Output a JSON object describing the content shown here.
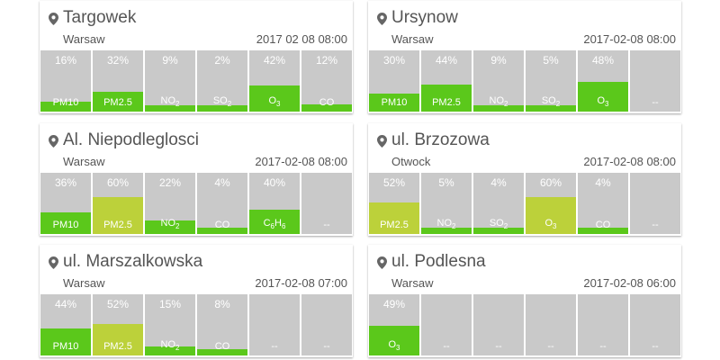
{
  "colors": {
    "good": "#5bc81b",
    "moderate": "#bcd13a",
    "empty": "#c9c9c9"
  },
  "icon": "location-pin-icon",
  "cards": [
    {
      "station": "Targowek",
      "city": "Warsaw",
      "time": "2017 02 08 08:00",
      "tiles": [
        {
          "pct": "16%",
          "level": 0.16,
          "label": "PM10",
          "color": "good"
        },
        {
          "pct": "32%",
          "level": 0.32,
          "label": "PM2.5",
          "color": "good"
        },
        {
          "pct": "9%",
          "level": 0.09,
          "label": "NO",
          "sub": "2",
          "color": "good"
        },
        {
          "pct": "2%",
          "level": 0.02,
          "label": "SO",
          "sub": "2",
          "color": "good"
        },
        {
          "pct": "42%",
          "level": 0.42,
          "label": "O",
          "sub": "3",
          "color": "good"
        },
        {
          "pct": "12%",
          "level": 0.12,
          "label": "CO",
          "color": "good"
        }
      ]
    },
    {
      "station": "Ursynow",
      "city": "Warsaw",
      "time": "2017-02-08 08:00",
      "tiles": [
        {
          "pct": "30%",
          "level": 0.3,
          "label": "PM10",
          "color": "good"
        },
        {
          "pct": "44%",
          "level": 0.44,
          "label": "PM2.5",
          "color": "good"
        },
        {
          "pct": "9%",
          "level": 0.09,
          "label": "NO",
          "sub": "2",
          "color": "good"
        },
        {
          "pct": "5%",
          "level": 0.05,
          "label": "SO",
          "sub": "2",
          "color": "good"
        },
        {
          "pct": "48%",
          "level": 0.48,
          "label": "O",
          "sub": "3",
          "color": "good"
        },
        {
          "pct": "",
          "level": 0,
          "label": "--"
        }
      ]
    },
    {
      "station": "Al. Niepodleglosci",
      "city": "Warsaw",
      "time": "2017-02-08 08:00",
      "tiles": [
        {
          "pct": "36%",
          "level": 0.36,
          "label": "PM10",
          "color": "good"
        },
        {
          "pct": "60%",
          "level": 0.6,
          "label": "PM2.5",
          "color": "moderate"
        },
        {
          "pct": "22%",
          "level": 0.22,
          "label": "NO",
          "sub": "2",
          "color": "good"
        },
        {
          "pct": "4%",
          "level": 0.04,
          "label": "CO",
          "color": "good"
        },
        {
          "pct": "40%",
          "level": 0.4,
          "label": "C",
          "sub": "6",
          "label2": "H",
          "sub2": "6",
          "color": "good"
        },
        {
          "pct": "",
          "level": 0,
          "label": "--"
        }
      ]
    },
    {
      "station": "ul. Brzozowa",
      "city": "Otwock",
      "time": "2017-02-08 08:00",
      "tiles": [
        {
          "pct": "52%",
          "level": 0.52,
          "label": "PM2.5",
          "color": "moderate"
        },
        {
          "pct": "5%",
          "level": 0.05,
          "label": "NO",
          "sub": "2",
          "color": "good"
        },
        {
          "pct": "4%",
          "level": 0.04,
          "label": "SO",
          "sub": "2",
          "color": "good"
        },
        {
          "pct": "60%",
          "level": 0.6,
          "label": "O",
          "sub": "3",
          "color": "moderate"
        },
        {
          "pct": "4%",
          "level": 0.04,
          "label": "CO",
          "color": "good"
        },
        {
          "pct": "",
          "level": 0,
          "label": "--"
        }
      ]
    },
    {
      "station": "ul. Marszalkowska",
      "city": "Warsaw",
      "time": "2017-02-08 07:00",
      "tiles": [
        {
          "pct": "44%",
          "level": 0.44,
          "label": "PM10",
          "color": "good"
        },
        {
          "pct": "52%",
          "level": 0.52,
          "label": "PM2.5",
          "color": "moderate"
        },
        {
          "pct": "15%",
          "level": 0.15,
          "label": "NO",
          "sub": "2",
          "color": "good"
        },
        {
          "pct": "8%",
          "level": 0.08,
          "label": "CO",
          "color": "good"
        },
        {
          "pct": "",
          "level": 0,
          "label": "--"
        },
        {
          "pct": "",
          "level": 0,
          "label": "--"
        }
      ]
    },
    {
      "station": "ul. Podlesna",
      "city": "Warsaw",
      "time": "2017-02-08 06:00",
      "tiles": [
        {
          "pct": "49%",
          "level": 0.49,
          "label": "O",
          "sub": "3",
          "color": "good"
        },
        {
          "pct": "",
          "level": 0,
          "label": "--"
        },
        {
          "pct": "",
          "level": 0,
          "label": "--"
        },
        {
          "pct": "",
          "level": 0,
          "label": "--"
        },
        {
          "pct": "",
          "level": 0,
          "label": "--"
        },
        {
          "pct": "",
          "level": 0,
          "label": "--"
        }
      ]
    }
  ]
}
